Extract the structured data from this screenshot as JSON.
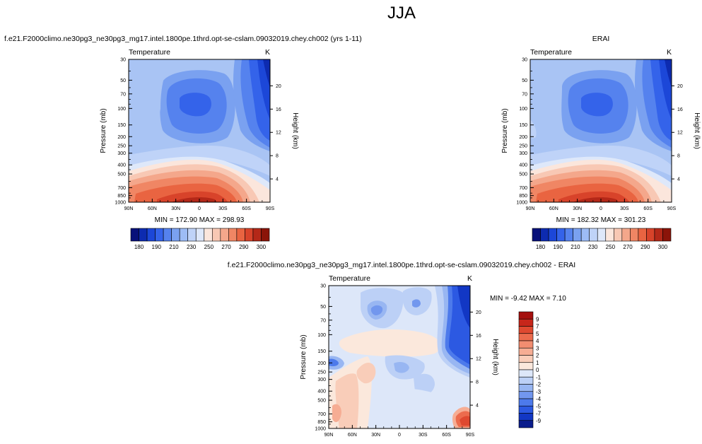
{
  "page": {
    "title": "JJA"
  },
  "panels": [
    {
      "id": "model",
      "title": "f.e21.F2000climo.ne30pg3_ne30pg3_mg17.intel.1800pe.1thrd.opt-se-cslam.09032019.chey.ch002 (yrs 1-11)",
      "left_label": "Temperature",
      "right_label": "K",
      "stats": "MIN = 172.90   MAX = 298.93"
    },
    {
      "id": "obs",
      "title": "ERAI",
      "left_label": "Temperature",
      "right_label": "K",
      "stats": "MIN = 182.32   MAX = 301.23"
    },
    {
      "id": "diff",
      "title": "f.e21.F2000climo.ne30pg3_ne30pg3_mg17.intel.1800pe.1thrd.opt-se-cslam.09032019.chey.ch002 - ERAI",
      "left_label": "Temperature",
      "right_label": "K",
      "stats": "MIN =  -9.42   MAX =   7.10"
    }
  ],
  "chart_data": [
    {
      "type": "heatmap",
      "title": "f.e21.F2000climo.ne30pg3_ne30pg3_mg17.intel.1800pe.1thrd.opt-se-cslam.09032019.chey.ch002 (yrs 1-11)",
      "xlabel": "",
      "ylabel": "Pressure (mb)",
      "y2label": "Height (km)",
      "x_ticks": [
        "90N",
        "60N",
        "30N",
        "0",
        "30S",
        "60S",
        "90S"
      ],
      "y_ticks": [
        30,
        50,
        70,
        100,
        150,
        200,
        250,
        300,
        400,
        500,
        700,
        850,
        1000
      ],
      "y2_ticks": [
        4,
        8,
        12,
        16,
        20
      ],
      "ylim": [
        1000,
        30
      ],
      "y_scale": "log",
      "colorbar_orientation": "horizontal",
      "colorbar_labels": [
        "180",
        "190",
        "210",
        "230",
        "250",
        "270",
        "290",
        "300"
      ],
      "colors": [
        "#08117a",
        "#0d2bb0",
        "#1c47d8",
        "#3463ea",
        "#5582ee",
        "#7aa1f0",
        "#9dbcf5",
        "#bfd3f8",
        "#dee8fa",
        "#fbe6dc",
        "#f8c8b4",
        "#f4a78b",
        "#f08664",
        "#e96441",
        "#d8432a",
        "#b42818",
        "#8b1409"
      ],
      "min": 172.9,
      "max": 298.93
    },
    {
      "type": "heatmap",
      "title": "ERAI",
      "xlabel": "",
      "ylabel": "Pressure (mb)",
      "y2label": "Height (km)",
      "x_ticks": [
        "90N",
        "60N",
        "30N",
        "0",
        "30S",
        "60S",
        "90S"
      ],
      "y_ticks": [
        30,
        50,
        70,
        100,
        150,
        200,
        250,
        300,
        400,
        500,
        700,
        850,
        1000
      ],
      "y2_ticks": [
        4,
        8,
        12,
        16,
        20
      ],
      "ylim": [
        1000,
        30
      ],
      "y_scale": "log",
      "colorbar_orientation": "horizontal",
      "colorbar_labels": [
        "180",
        "190",
        "210",
        "230",
        "250",
        "270",
        "290",
        "300"
      ],
      "colors": [
        "#08117a",
        "#0d2bb0",
        "#1c47d8",
        "#3463ea",
        "#5582ee",
        "#7aa1f0",
        "#9dbcf5",
        "#bfd3f8",
        "#dee8fa",
        "#fbe6dc",
        "#f8c8b4",
        "#f4a78b",
        "#f08664",
        "#e96441",
        "#d8432a",
        "#b42818",
        "#8b1409"
      ],
      "min": 182.32,
      "max": 301.23
    },
    {
      "type": "heatmap",
      "title": "f.e21.F2000climo.ne30pg3_ne30pg3_mg17.intel.1800pe.1thrd.opt-se-cslam.09032019.chey.ch002 - ERAI",
      "xlabel": "",
      "ylabel": "Pressure (mb)",
      "y2label": "Height (km)",
      "x_ticks": [
        "90N",
        "60N",
        "30N",
        "0",
        "30S",
        "60S",
        "90S"
      ],
      "y_ticks": [
        30,
        50,
        70,
        100,
        150,
        200,
        250,
        300,
        400,
        500,
        700,
        850,
        1000
      ],
      "y2_ticks": [
        4,
        8,
        12,
        16,
        20
      ],
      "ylim": [
        1000,
        30
      ],
      "y_scale": "log",
      "colorbar_orientation": "vertical",
      "colorbar_labels": [
        "9",
        "7",
        "5",
        "4",
        "3",
        "2",
        "1",
        "0",
        "-1",
        "-2",
        "-3",
        "-4",
        "-5",
        "-7",
        "-9"
      ],
      "colors": [
        "#a50f0d",
        "#c7261a",
        "#df4930",
        "#ec6b4d",
        "#f28d70",
        "#f6ad94",
        "#f9cdb9",
        "#fbe8dc",
        "#dde7f9",
        "#bcd0f6",
        "#98b6f2",
        "#7297ee",
        "#4d7aeb",
        "#2c59e2",
        "#1237c4",
        "#0a1c8c"
      ],
      "min": -9.42,
      "max": 7.1
    }
  ]
}
